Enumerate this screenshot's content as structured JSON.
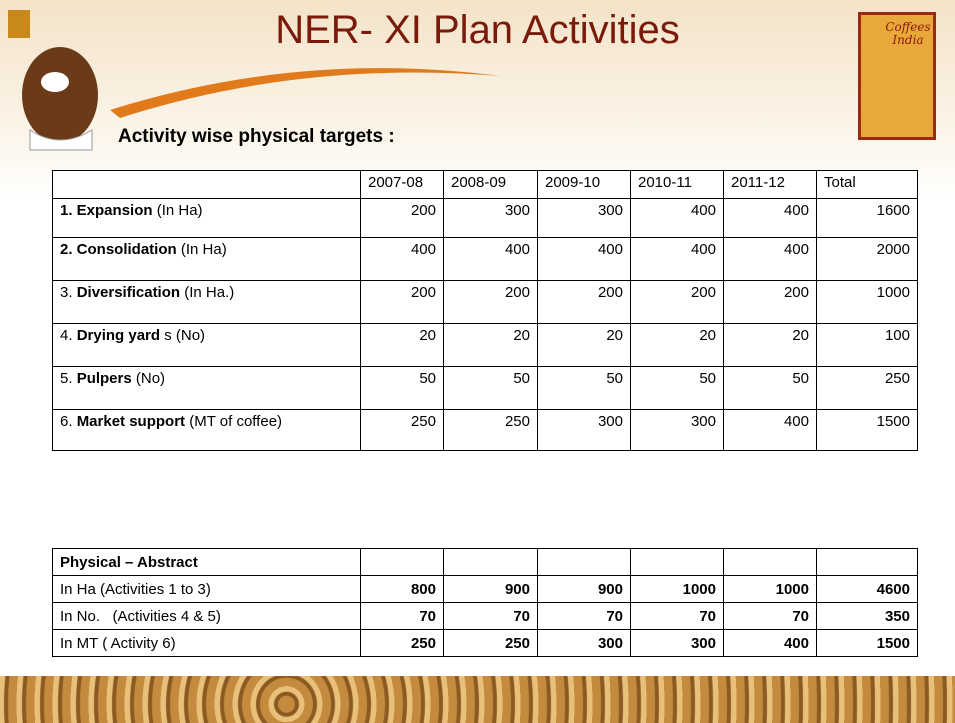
{
  "header": {
    "title": "NER- XI Plan Activities",
    "subtitle": "Activity wise physical targets :",
    "logo": "Coffees India"
  },
  "targets": {
    "columns": [
      "2007-08",
      "2008-09",
      "2009-10",
      "2010-11",
      "2011-12",
      "Total"
    ],
    "rows": [
      {
        "label": [
          {
            "text": "1. Expansion",
            "bold": true
          },
          {
            "text": "(In Ha)",
            "bold": false
          }
        ],
        "values": [
          200,
          300,
          300,
          400,
          400,
          1600
        ]
      },
      {
        "label": [
          {
            "text": "2. Consolidation",
            "bold": true
          },
          {
            "text": "(In Ha)",
            "bold": false
          }
        ],
        "values": [
          400,
          400,
          400,
          400,
          400,
          2000
        ]
      },
      {
        "label": [
          {
            "text": "3.",
            "bold": false
          },
          {
            "text": "Diversification",
            "bold": true
          },
          {
            "text": "(In Ha.)",
            "bold": false
          }
        ],
        "values": [
          200,
          200,
          200,
          200,
          200,
          1000
        ]
      },
      {
        "label": [
          {
            "text": "4.",
            "bold": false
          },
          {
            "text": "Drying yard",
            "bold": true
          },
          {
            "text": "s (No)",
            "bold": false
          }
        ],
        "values": [
          20,
          20,
          20,
          20,
          20,
          100
        ]
      },
      {
        "label": [
          {
            "text": "5.",
            "bold": false
          },
          {
            "text": "Pulpers",
            "bold": true
          },
          {
            "text": "(No)",
            "bold": false
          }
        ],
        "values": [
          50,
          50,
          50,
          50,
          50,
          250
        ]
      },
      {
        "label": [
          {
            "text": "6.",
            "bold": false
          },
          {
            "text": "Market support",
            "bold": true
          },
          {
            "text": "(MT of coffee)",
            "bold": false
          }
        ],
        "values": [
          250,
          250,
          300,
          300,
          400,
          1500
        ]
      }
    ]
  },
  "abstract": {
    "title": "Physical – Abstract",
    "rows": [
      {
        "label": "In Ha (Activities 1 to 3)",
        "values": [
          800,
          900,
          900,
          1000,
          1000,
          4600
        ]
      },
      {
        "label": "In No.   (Activities 4 & 5)",
        "values": [
          70,
          70,
          70,
          70,
          70,
          350
        ]
      },
      {
        "label": "In MT ( Activity 6)",
        "values": [
          250,
          250,
          300,
          300,
          400,
          1500
        ]
      }
    ]
  }
}
